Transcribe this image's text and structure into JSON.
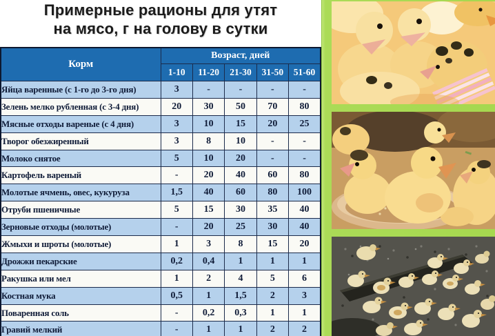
{
  "title": {
    "line1": "Примерные рационы для утят",
    "line2": "на мясо, г на голову в сутки"
  },
  "table": {
    "feed_header": "Корм",
    "age_header": "Возраст, дней",
    "age_cols": [
      "1-10",
      "11-20",
      "21-30",
      "31-50",
      "51-60"
    ],
    "rows": [
      {
        "name": "Яйца варенные (с 1-го до 3-го дня)",
        "values": [
          "3",
          "-",
          "-",
          "-",
          "-"
        ]
      },
      {
        "name": "Зелень мелко рубленная (с 3-4 дня)",
        "values": [
          "20",
          "30",
          "50",
          "70",
          "80"
        ]
      },
      {
        "name": "Мясные отходы вареные (с 4 дня)",
        "values": [
          "3",
          "10",
          "15",
          "20",
          "25"
        ]
      },
      {
        "name": "Творог обезжиренный",
        "values": [
          "3",
          "8",
          "10",
          "-",
          "-"
        ]
      },
      {
        "name": "Молоко снятое",
        "values": [
          "5",
          "10",
          "20",
          "-",
          "-"
        ]
      },
      {
        "name": "Картофель вареный",
        "values": [
          "-",
          "20",
          "40",
          "60",
          "80"
        ]
      },
      {
        "name": "Молотые ячмень, овес, кукуруза",
        "values": [
          "1,5",
          "40",
          "60",
          "80",
          "100"
        ]
      },
      {
        "name": "Отруби пшеничные",
        "values": [
          "5",
          "15",
          "30",
          "35",
          "40"
        ]
      },
      {
        "name": "Зерновые отходы (молотые)",
        "values": [
          "-",
          "20",
          "25",
          "30",
          "40"
        ]
      },
      {
        "name": "Жмыхи и шроты (молотые)",
        "values": [
          "1",
          "3",
          "8",
          "15",
          "20"
        ]
      },
      {
        "name": "Дрожжи пекарские",
        "values": [
          "0,2",
          "0,4",
          "1",
          "1",
          "1"
        ]
      },
      {
        "name": "Ракушка или мел",
        "values": [
          "1",
          "2",
          "4",
          "5",
          "6"
        ]
      },
      {
        "name": "Костная мука",
        "values": [
          "0,5",
          "1",
          "1,5",
          "2",
          "3"
        ]
      },
      {
        "name": "Поваренная соль",
        "values": [
          "-",
          "0,2",
          "0,3",
          "1",
          "1"
        ]
      },
      {
        "name": "Гравий мелкий",
        "values": [
          "-",
          "1",
          "1",
          "2",
          "2"
        ]
      }
    ]
  },
  "photos": [
    {
      "id": "ducklings-closeup"
    },
    {
      "id": "ducklings-feeding-plate"
    },
    {
      "id": "ducklings-yard-trough"
    }
  ],
  "colors": {
    "header_blue": "#1e6cb0",
    "row_blue": "#b5d1ec",
    "row_white": "#fafaf5",
    "table_border": "#1b2a4a",
    "green_frame": "#a6d84f",
    "title_text": "#1b1b1b",
    "cell_text": "#101c38"
  }
}
